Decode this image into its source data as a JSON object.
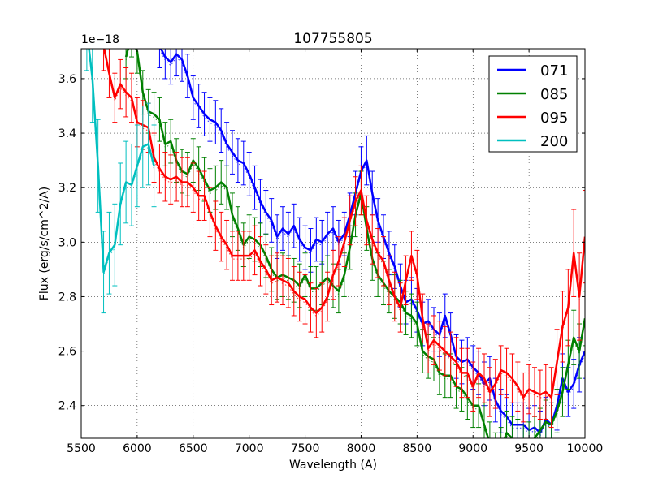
{
  "chart_data": {
    "type": "line",
    "title": "107755805",
    "xlabel": "Wavelength (A)",
    "ylabel": "Flux (erg/s/cm^2/A)",
    "offset_text": "1e−18",
    "xlim": [
      5500,
      10000
    ],
    "ylim": [
      2.28,
      3.71
    ],
    "xticks": [
      5500,
      6000,
      6500,
      7000,
      7500,
      8000,
      8500,
      9000,
      9500,
      10000
    ],
    "xtick_labels": [
      "5500",
      "6000",
      "6500",
      "7000",
      "7500",
      "8000",
      "8500",
      "9000",
      "9500",
      "10000"
    ],
    "yticks": [
      2.4,
      2.6,
      2.8,
      3.0,
      3.2,
      3.4,
      3.6
    ],
    "ytick_labels": [
      "2.4",
      "2.6",
      "2.8",
      "3.0",
      "3.2",
      "3.4",
      "3.6"
    ],
    "grid": true,
    "legend_position": "top-right",
    "series": [
      {
        "name": "071",
        "color": "#0000ff",
        "err_color": "#0000ff",
        "x": [
          6200,
          6250,
          6300,
          6350,
          6400,
          6450,
          6500,
          6550,
          6600,
          6650,
          6700,
          6750,
          6800,
          6850,
          6900,
          6950,
          7000,
          7050,
          7100,
          7150,
          7200,
          7250,
          7300,
          7350,
          7400,
          7450,
          7500,
          7550,
          7600,
          7650,
          7700,
          7750,
          7800,
          7850,
          7900,
          7950,
          8000,
          8050,
          8100,
          8150,
          8200,
          8250,
          8300,
          8350,
          8400,
          8450,
          8500,
          8550,
          8600,
          8650,
          8700,
          8750,
          8800,
          8850,
          8900,
          8950,
          9000,
          9050,
          9100,
          9150,
          9200,
          9250,
          9300,
          9350,
          9400,
          9450,
          9500,
          9550,
          9600,
          9650,
          9700,
          9750,
          9800,
          9850,
          9900,
          9950,
          10000
        ],
        "y": [
          3.72,
          3.68,
          3.66,
          3.69,
          3.67,
          3.61,
          3.53,
          3.5,
          3.47,
          3.45,
          3.44,
          3.41,
          3.36,
          3.33,
          3.3,
          3.29,
          3.25,
          3.2,
          3.15,
          3.11,
          3.08,
          3.02,
          3.05,
          3.03,
          3.06,
          3.01,
          2.98,
          2.97,
          3.01,
          3.0,
          3.03,
          3.05,
          3.0,
          3.03,
          3.1,
          3.18,
          3.26,
          3.3,
          3.18,
          3.08,
          3.02,
          2.96,
          2.91,
          2.84,
          2.78,
          2.79,
          2.75,
          2.7,
          2.71,
          2.68,
          2.66,
          2.73,
          2.66,
          2.58,
          2.56,
          2.57,
          2.54,
          2.52,
          2.48,
          2.5,
          2.42,
          2.38,
          2.36,
          2.33,
          2.33,
          2.33,
          2.31,
          2.32,
          2.3,
          2.35,
          2.33,
          2.4,
          2.5,
          2.45,
          2.48,
          2.55,
          2.6
        ],
        "err": [
          0.08,
          0.08,
          0.08,
          0.08,
          0.08,
          0.08,
          0.08,
          0.08,
          0.08,
          0.08,
          0.08,
          0.08,
          0.08,
          0.08,
          0.08,
          0.08,
          0.08,
          0.08,
          0.08,
          0.08,
          0.08,
          0.08,
          0.08,
          0.08,
          0.08,
          0.08,
          0.08,
          0.08,
          0.08,
          0.08,
          0.08,
          0.08,
          0.08,
          0.08,
          0.08,
          0.08,
          0.09,
          0.09,
          0.08,
          0.08,
          0.08,
          0.08,
          0.08,
          0.08,
          0.08,
          0.08,
          0.08,
          0.08,
          0.08,
          0.08,
          0.08,
          0.08,
          0.08,
          0.08,
          0.08,
          0.08,
          0.08,
          0.08,
          0.08,
          0.08,
          0.08,
          0.08,
          0.08,
          0.08,
          0.08,
          0.08,
          0.08,
          0.08,
          0.08,
          0.08,
          0.08,
          0.09,
          0.09,
          0.09,
          0.09,
          0.1,
          0.1
        ]
      },
      {
        "name": "085",
        "color": "#008000",
        "err_color": "#008000",
        "x": [
          5900,
          5950,
          6000,
          6050,
          6100,
          6150,
          6200,
          6250,
          6300,
          6350,
          6400,
          6450,
          6500,
          6550,
          6600,
          6650,
          6700,
          6750,
          6800,
          6850,
          6900,
          6950,
          7000,
          7050,
          7100,
          7150,
          7200,
          7250,
          7300,
          7350,
          7400,
          7450,
          7500,
          7550,
          7600,
          7650,
          7700,
          7750,
          7800,
          7850,
          7900,
          7950,
          8000,
          8050,
          8100,
          8150,
          8200,
          8250,
          8300,
          8350,
          8400,
          8450,
          8500,
          8550,
          8600,
          8650,
          8700,
          8750,
          8800,
          8850,
          8900,
          8950,
          9000,
          9050,
          9100,
          9150,
          9200,
          9250,
          9300,
          9350,
          9400,
          9450,
          9500,
          9550,
          9600,
          9650,
          9700,
          9750,
          9800,
          9850,
          9900,
          9950,
          10000
        ],
        "y": [
          3.68,
          3.76,
          3.7,
          3.55,
          3.48,
          3.47,
          3.45,
          3.36,
          3.37,
          3.3,
          3.26,
          3.25,
          3.3,
          3.27,
          3.23,
          3.19,
          3.2,
          3.22,
          3.2,
          3.1,
          3.05,
          2.99,
          3.02,
          3.01,
          2.99,
          2.95,
          2.9,
          2.87,
          2.88,
          2.87,
          2.86,
          2.84,
          2.88,
          2.83,
          2.83,
          2.85,
          2.87,
          2.84,
          2.82,
          2.88,
          2.98,
          3.1,
          3.18,
          3.05,
          2.94,
          2.88,
          2.85,
          2.82,
          2.8,
          2.78,
          2.74,
          2.73,
          2.7,
          2.6,
          2.58,
          2.57,
          2.52,
          2.51,
          2.51,
          2.47,
          2.46,
          2.43,
          2.4,
          2.4,
          2.33,
          2.26,
          2.22,
          2.24,
          2.3,
          2.28,
          2.27,
          2.25,
          2.26,
          2.28,
          2.31,
          2.34,
          2.33,
          2.38,
          2.45,
          2.55,
          2.65,
          2.6,
          2.72
        ],
        "err": [
          0.08,
          0.08,
          0.08,
          0.08,
          0.08,
          0.08,
          0.08,
          0.08,
          0.08,
          0.08,
          0.08,
          0.08,
          0.08,
          0.08,
          0.08,
          0.08,
          0.08,
          0.08,
          0.08,
          0.08,
          0.08,
          0.08,
          0.08,
          0.08,
          0.08,
          0.08,
          0.08,
          0.08,
          0.08,
          0.08,
          0.08,
          0.08,
          0.08,
          0.08,
          0.08,
          0.08,
          0.08,
          0.08,
          0.08,
          0.08,
          0.08,
          0.08,
          0.08,
          0.08,
          0.08,
          0.08,
          0.08,
          0.08,
          0.08,
          0.08,
          0.08,
          0.08,
          0.08,
          0.08,
          0.08,
          0.08,
          0.08,
          0.08,
          0.08,
          0.08,
          0.08,
          0.08,
          0.08,
          0.08,
          0.08,
          0.08,
          0.08,
          0.08,
          0.08,
          0.08,
          0.08,
          0.08,
          0.08,
          0.08,
          0.08,
          0.08,
          0.08,
          0.08,
          0.09,
          0.09,
          0.1,
          0.1,
          0.1
        ]
      },
      {
        "name": "095",
        "color": "#ff0000",
        "err_color": "#ff0000",
        "x": [
          5700,
          5750,
          5800,
          5850,
          5900,
          5950,
          6000,
          6050,
          6100,
          6150,
          6200,
          6250,
          6300,
          6350,
          6400,
          6450,
          6500,
          6550,
          6600,
          6650,
          6700,
          6750,
          6800,
          6850,
          6900,
          6950,
          7000,
          7050,
          7100,
          7150,
          7200,
          7250,
          7300,
          7350,
          7400,
          7450,
          7500,
          7550,
          7600,
          7650,
          7700,
          7750,
          7800,
          7850,
          7900,
          7950,
          8000,
          8050,
          8100,
          8150,
          8200,
          8250,
          8300,
          8350,
          8400,
          8450,
          8500,
          8550,
          8600,
          8650,
          8700,
          8750,
          8800,
          8850,
          8900,
          8950,
          9000,
          9050,
          9100,
          9150,
          9200,
          9250,
          9300,
          9350,
          9400,
          9450,
          9500,
          9550,
          9600,
          9650,
          9700,
          9750,
          9800,
          9850,
          9900,
          9950,
          10000
        ],
        "y": [
          3.72,
          3.62,
          3.53,
          3.58,
          3.55,
          3.53,
          3.44,
          3.43,
          3.42,
          3.31,
          3.27,
          3.24,
          3.23,
          3.24,
          3.22,
          3.22,
          3.2,
          3.17,
          3.17,
          3.11,
          3.06,
          3.02,
          2.99,
          2.95,
          2.95,
          2.95,
          2.95,
          2.97,
          2.93,
          2.9,
          2.86,
          2.87,
          2.86,
          2.85,
          2.82,
          2.8,
          2.79,
          2.76,
          2.74,
          2.76,
          2.8,
          2.88,
          2.93,
          3.0,
          3.08,
          3.15,
          3.19,
          3.08,
          3.01,
          2.96,
          2.93,
          2.86,
          2.8,
          2.76,
          2.86,
          2.95,
          2.88,
          2.72,
          2.61,
          2.64,
          2.62,
          2.6,
          2.58,
          2.56,
          2.52,
          2.52,
          2.47,
          2.52,
          2.5,
          2.45,
          2.48,
          2.53,
          2.52,
          2.5,
          2.47,
          2.43,
          2.46,
          2.45,
          2.44,
          2.45,
          2.43,
          2.56,
          2.69,
          2.76,
          2.96,
          2.8,
          3.02
        ],
        "err": [
          0.09,
          0.09,
          0.09,
          0.09,
          0.09,
          0.09,
          0.09,
          0.09,
          0.09,
          0.09,
          0.09,
          0.09,
          0.09,
          0.09,
          0.09,
          0.09,
          0.09,
          0.09,
          0.09,
          0.09,
          0.09,
          0.09,
          0.09,
          0.09,
          0.09,
          0.09,
          0.09,
          0.09,
          0.09,
          0.09,
          0.09,
          0.09,
          0.09,
          0.09,
          0.09,
          0.09,
          0.09,
          0.09,
          0.09,
          0.09,
          0.09,
          0.09,
          0.09,
          0.09,
          0.09,
          0.09,
          0.09,
          0.09,
          0.09,
          0.09,
          0.09,
          0.09,
          0.09,
          0.09,
          0.09,
          0.09,
          0.09,
          0.09,
          0.09,
          0.09,
          0.09,
          0.09,
          0.09,
          0.09,
          0.09,
          0.09,
          0.09,
          0.09,
          0.09,
          0.09,
          0.09,
          0.09,
          0.09,
          0.09,
          0.09,
          0.09,
          0.09,
          0.09,
          0.09,
          0.1,
          0.11,
          0.12,
          0.13,
          0.14,
          0.16,
          0.16,
          0.17
        ]
      },
      {
        "name": "200",
        "color": "#00bfbf",
        "err_color": "#00bfbf",
        "x": [
          5550,
          5600,
          5650,
          5700,
          5750,
          5800,
          5850,
          5900,
          5950,
          6000,
          6050,
          6100,
          6150
        ],
        "y": [
          3.78,
          3.6,
          3.28,
          2.89,
          2.96,
          2.99,
          3.14,
          3.22,
          3.21,
          3.28,
          3.35,
          3.36,
          3.28
        ],
        "err": [
          0.15,
          0.16,
          0.17,
          0.15,
          0.15,
          0.15,
          0.15,
          0.15,
          0.15,
          0.15,
          0.15,
          0.15,
          0.15
        ]
      }
    ]
  }
}
